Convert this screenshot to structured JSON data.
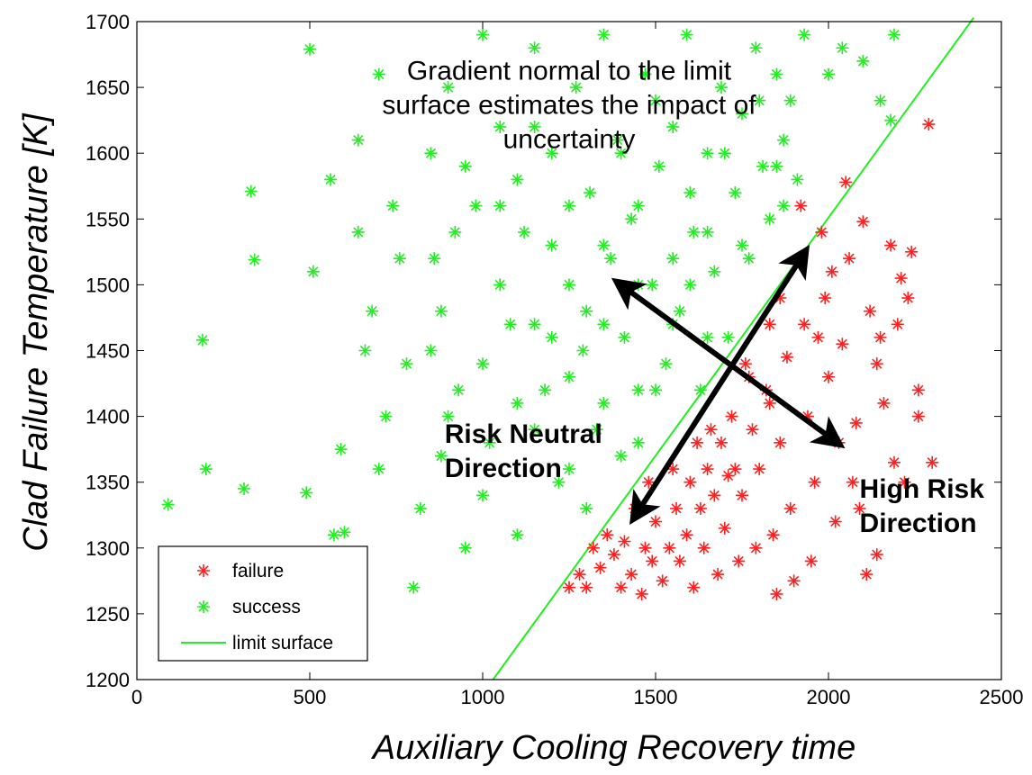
{
  "chart_data": {
    "type": "scatter",
    "xlabel": "Auxiliary Cooling Recovery time",
    "ylabel": "Clad Failure Temperature [K]",
    "xlim": [
      0,
      2500
    ],
    "ylim": [
      1200,
      1700
    ],
    "xticks": [
      0,
      500,
      1000,
      1500,
      2000,
      2500
    ],
    "yticks": [
      1200,
      1250,
      1300,
      1350,
      1400,
      1450,
      1500,
      1550,
      1600,
      1650,
      1700
    ],
    "grid": false,
    "legend_position": "bottom-left",
    "marker": "*",
    "series": [
      {
        "name": "failure",
        "color": "#ff2020",
        "points": [
          [
            2290,
            1622
          ],
          [
            2300,
            1365
          ],
          [
            2260,
            1420
          ],
          [
            2260,
            1400
          ],
          [
            2240,
            1525
          ],
          [
            2230,
            1490
          ],
          [
            2210,
            1505
          ],
          [
            2200,
            1470
          ],
          [
            2190,
            1365
          ],
          [
            2160,
            1410
          ],
          [
            2140,
            1440
          ],
          [
            2120,
            1480
          ],
          [
            2110,
            1280
          ],
          [
            2100,
            1548
          ],
          [
            2080,
            1395
          ],
          [
            2060,
            1520
          ],
          [
            2050,
            1578
          ],
          [
            2040,
            1455
          ],
          [
            2030,
            1380
          ],
          [
            2020,
            1320
          ],
          [
            2000,
            1430
          ],
          [
            1990,
            1490
          ],
          [
            1980,
            1540
          ],
          [
            1960,
            1350
          ],
          [
            1950,
            1290
          ],
          [
            1940,
            1400
          ],
          [
            1930,
            1470
          ],
          [
            1920,
            1520
          ],
          [
            1900,
            1275
          ],
          [
            1890,
            1330
          ],
          [
            1880,
            1445
          ],
          [
            1860,
            1380
          ],
          [
            1850,
            1265
          ],
          [
            1840,
            1310
          ],
          [
            1830,
            1470
          ],
          [
            1820,
            1420
          ],
          [
            1800,
            1360
          ],
          [
            1790,
            1300
          ],
          [
            1780,
            1390
          ],
          [
            1760,
            1440
          ],
          [
            1750,
            1340
          ],
          [
            1740,
            1290
          ],
          [
            1720,
            1400
          ],
          [
            1710,
            1355
          ],
          [
            1700,
            1315
          ],
          [
            1690,
            1380
          ],
          [
            1680,
            1280
          ],
          [
            1670,
            1340
          ],
          [
            1650,
            1360
          ],
          [
            1640,
            1300
          ],
          [
            1630,
            1330
          ],
          [
            1610,
            1270
          ],
          [
            1600,
            1350
          ],
          [
            1590,
            1310
          ],
          [
            1570,
            1290
          ],
          [
            1560,
            1330
          ],
          [
            1540,
            1300
          ],
          [
            1520,
            1275
          ],
          [
            1500,
            1320
          ],
          [
            1490,
            1290
          ],
          [
            1470,
            1300
          ],
          [
            1460,
            1265
          ],
          [
            1440,
            1330
          ],
          [
            1430,
            1280
          ],
          [
            1410,
            1305
          ],
          [
            1400,
            1270
          ],
          [
            1380,
            1295
          ],
          [
            1360,
            1310
          ],
          [
            1340,
            1285
          ],
          [
            1320,
            1300
          ],
          [
            1300,
            1270
          ],
          [
            1280,
            1280
          ],
          [
            1250,
            1270
          ],
          [
            1920,
            1560
          ],
          [
            2010,
            1510
          ],
          [
            1970,
            1460
          ],
          [
            2150,
            1460
          ],
          [
            2180,
            1530
          ],
          [
            2070,
            1350
          ],
          [
            1860,
            1490
          ],
          [
            1830,
            1410
          ],
          [
            1770,
            1430
          ],
          [
            1730,
            1360
          ],
          [
            1660,
            1390
          ],
          [
            1620,
            1380
          ],
          [
            1550,
            1360
          ],
          [
            1480,
            1350
          ],
          [
            2090,
            1330
          ],
          [
            2140,
            1295
          ],
          [
            2220,
            1350
          ]
        ]
      },
      {
        "name": "success",
        "color": "#22ee22",
        "points": [
          [
            90,
            1333
          ],
          [
            190,
            1458
          ],
          [
            200,
            1360
          ],
          [
            310,
            1345
          ],
          [
            330,
            1571
          ],
          [
            340,
            1519
          ],
          [
            490,
            1342
          ],
          [
            500,
            1679
          ],
          [
            510,
            1510
          ],
          [
            560,
            1580
          ],
          [
            570,
            1310
          ],
          [
            590,
            1375
          ],
          [
            600,
            1312
          ],
          [
            640,
            1540
          ],
          [
            660,
            1450
          ],
          [
            700,
            1660
          ],
          [
            720,
            1400
          ],
          [
            760,
            1520
          ],
          [
            800,
            1270
          ],
          [
            820,
            1330
          ],
          [
            850,
            1600
          ],
          [
            880,
            1480
          ],
          [
            900,
            1650
          ],
          [
            930,
            1420
          ],
          [
            950,
            1300
          ],
          [
            980,
            1560
          ],
          [
            1000,
            1690
          ],
          [
            1020,
            1380
          ],
          [
            1050,
            1620
          ],
          [
            1080,
            1470
          ],
          [
            1100,
            1310
          ],
          [
            1120,
            1540
          ],
          [
            1150,
            1680
          ],
          [
            1180,
            1420
          ],
          [
            1200,
            1600
          ],
          [
            1220,
            1350
          ],
          [
            1250,
            1500
          ],
          [
            1270,
            1650
          ],
          [
            1290,
            1450
          ],
          [
            1310,
            1570
          ],
          [
            1330,
            1390
          ],
          [
            1350,
            1690
          ],
          [
            1370,
            1520
          ],
          [
            1390,
            1610
          ],
          [
            1410,
            1460
          ],
          [
            1430,
            1550
          ],
          [
            1450,
            1380
          ],
          [
            1470,
            1660
          ],
          [
            1490,
            1500
          ],
          [
            1510,
            1590
          ],
          [
            1530,
            1440
          ],
          [
            1550,
            1620
          ],
          [
            1570,
            1480
          ],
          [
            1590,
            1690
          ],
          [
            1610,
            1540
          ],
          [
            1630,
            1420
          ],
          [
            1650,
            1600
          ],
          [
            1670,
            1510
          ],
          [
            1690,
            1650
          ],
          [
            1710,
            1460
          ],
          [
            1730,
            1570
          ],
          [
            1750,
            1630
          ],
          [
            1770,
            1520
          ],
          [
            1790,
            1680
          ],
          [
            1810,
            1590
          ],
          [
            1830,
            1550
          ],
          [
            1850,
            1660
          ],
          [
            1870,
            1610
          ],
          [
            1890,
            1640
          ],
          [
            1910,
            1580
          ],
          [
            1930,
            1690
          ],
          [
            2000,
            1660
          ],
          [
            2040,
            1680
          ],
          [
            2100,
            1670
          ],
          [
            2150,
            1640
          ],
          [
            2190,
            1690
          ],
          [
            2180,
            1625
          ],
          [
            850,
            1450
          ],
          [
            920,
            1540
          ],
          [
            1050,
            1500
          ],
          [
            1150,
            1470
          ],
          [
            1250,
            1430
          ],
          [
            1350,
            1470
          ],
          [
            1450,
            1500
          ],
          [
            1550,
            1470
          ],
          [
            1650,
            1460
          ],
          [
            1150,
            1390
          ],
          [
            1250,
            1360
          ],
          [
            1350,
            1410
          ],
          [
            1450,
            1420
          ],
          [
            700,
            1360
          ],
          [
            780,
            1440
          ],
          [
            640,
            1610
          ],
          [
            680,
            1480
          ],
          [
            740,
            1560
          ],
          [
            880,
            1370
          ],
          [
            1000,
            1440
          ],
          [
            1100,
            1580
          ],
          [
            1200,
            1530
          ],
          [
            1300,
            1330
          ],
          [
            1400,
            1600
          ],
          [
            1500,
            1640
          ],
          [
            1600,
            1570
          ],
          [
            1700,
            1600
          ],
          [
            1800,
            1640
          ],
          [
            1850,
            1590
          ],
          [
            1870,
            1560
          ],
          [
            1750,
            1530
          ],
          [
            1650,
            1540
          ],
          [
            1550,
            1520
          ],
          [
            1450,
            1560
          ],
          [
            1350,
            1530
          ],
          [
            1250,
            1560
          ],
          [
            1150,
            1620
          ],
          [
            1050,
            1560
          ],
          [
            950,
            1590
          ],
          [
            860,
            1520
          ],
          [
            900,
            1400
          ],
          [
            1000,
            1340
          ],
          [
            1100,
            1410
          ],
          [
            1200,
            1460
          ],
          [
            1300,
            1480
          ],
          [
            1400,
            1370
          ],
          [
            1500,
            1420
          ],
          [
            1600,
            1500
          ]
        ]
      },
      {
        "name": "limit surface",
        "color": "#22ee22",
        "line": [
          [
            1030,
            1200
          ],
          [
            2420,
            1703
          ]
        ]
      }
    ],
    "annotations": [
      {
        "lines": [
          "Gradient normal to the limit",
          "surface estimates the impact  of",
          "uncertainty"
        ],
        "anchor": [
          1250,
          1656
        ],
        "bold": false
      },
      {
        "lines": [
          "Risk Neutral",
          "Direction"
        ],
        "anchor": [
          890,
          1380
        ],
        "bold": true
      },
      {
        "lines": [
          "High Risk",
          "Direction"
        ],
        "anchor": [
          2090,
          1338
        ],
        "bold": true
      }
    ],
    "arrows": [
      {
        "name": "risk-neutral-arrow",
        "from": [
          1920,
          1520
        ],
        "to": [
          1450,
          1328
        ]
      },
      {
        "name": "high-risk-arrow",
        "from": [
          1410,
          1498
        ],
        "to": [
          2010,
          1383
        ]
      }
    ]
  }
}
